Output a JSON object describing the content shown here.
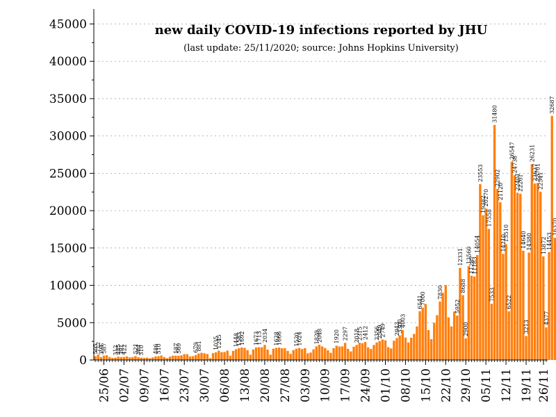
{
  "chart_data": {
    "type": "bar",
    "title": "new daily COVID-19 infections reported by JHU",
    "subtitle": "(last update: 25/11/2020; source: Johns Hopkins University)",
    "start_date": "2020-06-22",
    "end_date": "2020-11-25",
    "ylim": [
      0,
      47000
    ],
    "yticks": [
      0,
      5000,
      10000,
      15000,
      20000,
      25000,
      30000,
      35000,
      40000,
      45000
    ],
    "xticks": [
      {
        "date": "2020-06-25",
        "label": "25/06"
      },
      {
        "date": "2020-07-02",
        "label": "02/07"
      },
      {
        "date": "2020-07-09",
        "label": "09/07"
      },
      {
        "date": "2020-07-16",
        "label": "16/07"
      },
      {
        "date": "2020-07-23",
        "label": "23/07"
      },
      {
        "date": "2020-07-30",
        "label": "30/07"
      },
      {
        "date": "2020-08-06",
        "label": "06/08"
      },
      {
        "date": "2020-08-13",
        "label": "13/08"
      },
      {
        "date": "2020-08-20",
        "label": "20/08"
      },
      {
        "date": "2020-08-27",
        "label": "27/08"
      },
      {
        "date": "2020-09-03",
        "label": "03/09"
      },
      {
        "date": "2020-09-10",
        "label": "10/09"
      },
      {
        "date": "2020-09-17",
        "label": "17/09"
      },
      {
        "date": "2020-09-24",
        "label": "24/09"
      },
      {
        "date": "2020-10-01",
        "label": "01/10"
      },
      {
        "date": "2020-10-08",
        "label": "08/10"
      },
      {
        "date": "2020-10-15",
        "label": "15/10"
      },
      {
        "date": "2020-10-22",
        "label": "22/10"
      },
      {
        "date": "2020-10-29",
        "label": "29/10"
      },
      {
        "date": "2020-11-05",
        "label": "05/11"
      },
      {
        "date": "2020-11-12",
        "label": "12/11"
      },
      {
        "date": "2020-11-19",
        "label": "19/11"
      },
      {
        "date": "2020-11-26",
        "label": "26/11"
      }
    ],
    "values": [
      505,
      712,
      394,
      587,
      637,
      400,
      292,
      312,
      445,
      391,
      422,
      483,
      356,
      397,
      521,
      364,
      310,
      297,
      320,
      236,
      344,
      486,
      510,
      618,
      399,
      244,
      445,
      580,
      587,
      569,
      625,
      782,
      781,
      478,
      516,
      679,
      881,
      970,
      896,
      810,
      240,
      918,
      1035,
      1245,
      1051,
      1070,
      1260,
      578,
      1225,
      1448,
      1583,
      1692,
      1625,
      1306,
      711,
      1414,
      1673,
      1713,
      1707,
      2034,
      1402,
      710,
      1510,
      1628,
      1666,
      1579,
      1578,
      1225,
      821,
      1331,
      1520,
      1624,
      1475,
      1584,
      898,
      1001,
      1432,
      1829,
      2048,
      1824,
      1611,
      1299,
      957,
      1581,
      1920,
      1808,
      1822,
      2297,
      1501,
      1150,
      1779,
      2018,
      2315,
      2252,
      2412,
      1692,
      1474,
      2015,
      2356,
      2549,
      2749,
      2638,
      1728,
      1548,
      2586,
      2943,
      3300,
      4003,
      3000,
      2350,
      2980,
      3500,
      4500,
      6541,
      7000,
      7500,
      4000,
      2800,
      5000,
      6000,
      7830,
      9000,
      10040,
      5700,
      4500,
      6500,
      5952,
      12331,
      8688,
      2900,
      12560,
      11287,
      11183,
      14054,
      23553,
      19382,
      20270,
      17558,
      7533,
      31480,
      22902,
      21120,
      14210,
      15510,
      6522,
      26547,
      24738,
      22401,
      22261,
      14640,
      3213,
      14380,
      26231,
      23637,
      23701,
      22541,
      13872,
      4377,
      14453,
      32687,
      16370
    ],
    "point_labels": [
      {
        "index": 0,
        "text": "505"
      },
      {
        "index": 1,
        "text": "712"
      },
      {
        "index": 2,
        "text": "394"
      },
      {
        "index": 3,
        "text": "587"
      },
      {
        "index": 7,
        "text": "312"
      },
      {
        "index": 8,
        "text": "445"
      },
      {
        "index": 9,
        "text": "391"
      },
      {
        "index": 10,
        "text": "422"
      },
      {
        "index": 14,
        "text": "521"
      },
      {
        "index": 15,
        "text": "364"
      },
      {
        "index": 16,
        "text": "310"
      },
      {
        "index": 21,
        "text": "486"
      },
      {
        "index": 22,
        "text": "510"
      },
      {
        "index": 28,
        "text": "587"
      },
      {
        "index": 29,
        "text": "569"
      },
      {
        "index": 35,
        "text": "679"
      },
      {
        "index": 36,
        "text": "881"
      },
      {
        "index": 42,
        "text": "1035"
      },
      {
        "index": 43,
        "text": "1245"
      },
      {
        "index": 49,
        "text": "1448"
      },
      {
        "index": 50,
        "text": "1583"
      },
      {
        "index": 51,
        "text": "1692"
      },
      {
        "index": 56,
        "text": "1673"
      },
      {
        "index": 57,
        "text": "1713"
      },
      {
        "index": 59,
        "text": "2034"
      },
      {
        "index": 63,
        "text": "1628"
      },
      {
        "index": 64,
        "text": "1666"
      },
      {
        "index": 70,
        "text": "1520"
      },
      {
        "index": 71,
        "text": "1624"
      },
      {
        "index": 77,
        "text": "1829"
      },
      {
        "index": 78,
        "text": "2048"
      },
      {
        "index": 84,
        "text": "1920"
      },
      {
        "index": 87,
        "text": "2297"
      },
      {
        "index": 91,
        "text": "2018"
      },
      {
        "index": 92,
        "text": "2315"
      },
      {
        "index": 94,
        "text": "2412"
      },
      {
        "index": 98,
        "text": "2356"
      },
      {
        "index": 99,
        "text": "2549"
      },
      {
        "index": 100,
        "text": "2749"
      },
      {
        "index": 105,
        "text": "2943"
      },
      {
        "index": 106,
        "text": "3300"
      },
      {
        "index": 107,
        "text": "4003"
      },
      {
        "index": 113,
        "text": "6541"
      },
      {
        "index": 114,
        "text": "7000"
      },
      {
        "index": 120,
        "text": "7830"
      },
      {
        "index": 126,
        "text": "5952"
      },
      {
        "index": 127,
        "text": "12331"
      },
      {
        "index": 128,
        "text": "8688"
      },
      {
        "index": 129,
        "text": "2900"
      },
      {
        "index": 130,
        "text": "12560"
      },
      {
        "index": 131,
        "text": "11287"
      },
      {
        "index": 132,
        "text": "11183"
      },
      {
        "index": 133,
        "text": "14054"
      },
      {
        "index": 134,
        "text": "23553"
      },
      {
        "index": 135,
        "text": "19382"
      },
      {
        "index": 136,
        "text": "20270"
      },
      {
        "index": 137,
        "text": "17558"
      },
      {
        "index": 138,
        "text": "7533"
      },
      {
        "index": 139,
        "text": "31480"
      },
      {
        "index": 140,
        "text": "22902"
      },
      {
        "index": 141,
        "text": "21120"
      },
      {
        "index": 142,
        "text": "14210"
      },
      {
        "index": 143,
        "text": "15510"
      },
      {
        "index": 144,
        "text": "6522"
      },
      {
        "index": 145,
        "text": "26547"
      },
      {
        "index": 146,
        "text": "24738"
      },
      {
        "index": 147,
        "text": "22401"
      },
      {
        "index": 148,
        "text": "22261"
      },
      {
        "index": 149,
        "text": "14640"
      },
      {
        "index": 150,
        "text": "3213"
      },
      {
        "index": 151,
        "text": "14380"
      },
      {
        "index": 152,
        "text": "26231"
      },
      {
        "index": 153,
        "text": "23637"
      },
      {
        "index": 154,
        "text": "23701"
      },
      {
        "index": 155,
        "text": "22541"
      },
      {
        "index": 156,
        "text": "13872"
      },
      {
        "index": 157,
        "text": "4377"
      },
      {
        "index": 158,
        "text": "14453"
      },
      {
        "index": 159,
        "text": "32687"
      },
      {
        "index": 160,
        "text": "16370"
      }
    ],
    "colors": {
      "bar": "#ff7f0e",
      "axis": "#000000",
      "grid": "#a0a0a0"
    },
    "grid": true,
    "legend": "none"
  }
}
